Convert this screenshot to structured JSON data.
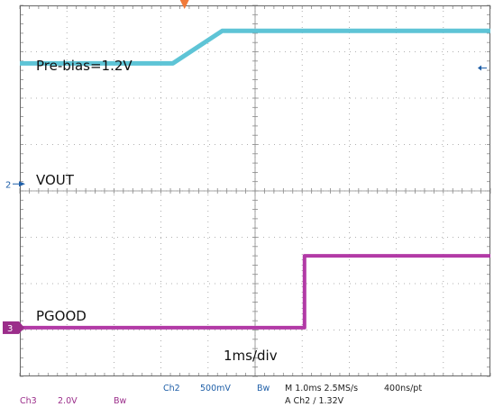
{
  "chart_data": {
    "type": "line",
    "title": "",
    "xlabel": "",
    "ylabel": "",
    "time_per_div_label": "1ms/div",
    "x_divisions": 10,
    "y_divisions": 8,
    "xlim": [
      0,
      10
    ],
    "ylim": [
      0,
      8
    ],
    "grid": true,
    "series": [
      {
        "name": "VOUT",
        "color": "#5ec4d6",
        "x": [
          0,
          3.25,
          4.3,
          10
        ],
        "y": [
          6.75,
          6.75,
          7.45,
          7.45
        ],
        "annotation": "Pre-bias=1.2V"
      },
      {
        "name": "PGOOD",
        "color": "#b23aa6",
        "x": [
          0,
          6.05,
          6.05,
          10
        ],
        "y": [
          1.05,
          1.05,
          2.6,
          2.6
        ]
      }
    ],
    "markers": {
      "ch2_ground": "2",
      "ch3_ground": "3",
      "ch2_ground_level": 4.15,
      "ch3_ground_level": 1.05,
      "trigger_x": 3.5
    },
    "status": {
      "row1": {
        "ch2": "Ch2",
        "ch2_scale": "500mV",
        "ch2_bw": "Bw",
        "timebase": "M 1.0ms 2.5MS/s",
        "pt": "400ns/pt"
      },
      "row2": {
        "ch3": "Ch3",
        "ch3_scale": "2.0V",
        "ch3_bw": "Bw",
        "trigger": "A  Ch2  ∕  1.32V"
      }
    }
  }
}
